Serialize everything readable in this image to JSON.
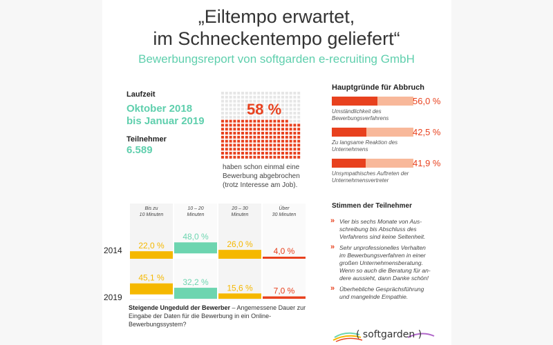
{
  "header": {
    "title_line1": "„Eiltempo erwartet,",
    "title_line2": "im Schneckentempo geliefert“",
    "subtitle": "Bewerbungsreport von softgarden e-recruiting GmbH"
  },
  "info": {
    "laufzeit_label": "Laufzeit",
    "laufzeit_line1": "Oktober 2018",
    "laufzeit_line2": "bis Januar 2019",
    "teilnehmer_label": "Teilnehmer",
    "teilnehmer_value": "6.589"
  },
  "abbruch": {
    "percent_label": "58 %",
    "percent_value": 58,
    "caption_line1": "haben schon einmal eine",
    "caption_line2": "Bewerbung abgebrochen",
    "caption_line3": "(trotz Interesse am Job)."
  },
  "gruende": {
    "title": "Hauptgründe für Abbruch",
    "items": [
      {
        "value": 56.0,
        "label": "56,0 %",
        "text1": "Umständlichkeit des",
        "text2": "Bewerbungsverfahrens"
      },
      {
        "value": 42.5,
        "label": "42,5 %",
        "text1": "Zu langsame Reaktion des",
        "text2": "Unternehmens"
      },
      {
        "value": 41.9,
        "label": "41,9 %",
        "text1": "Unsympathisches Auftreten der",
        "text2": "Unternehmensvertreter"
      }
    ]
  },
  "chart_data": {
    "type": "bar",
    "categories": [
      "Bis zu 10 Minuten",
      "10 – 20 Minuten",
      "20 – 30 Minuten",
      "Über 30 Minuten"
    ],
    "category_lines": [
      [
        "Bis zu",
        "10 Minuten"
      ],
      [
        "10 – 20",
        "Minuten"
      ],
      [
        "20 – 30",
        "Minuten"
      ],
      [
        "Über",
        "30 Minuten"
      ]
    ],
    "series": [
      {
        "name": "2014",
        "values": [
          22.0,
          48.0,
          26.0,
          4.0
        ],
        "labels": [
          "22,0 %",
          "48,0 %",
          "26,0 %",
          "4,0 %"
        ]
      },
      {
        "name": "2019",
        "values": [
          45.1,
          32.2,
          15.6,
          7.0
        ],
        "labels": [
          "45,1 %",
          "32,2 %",
          "15,6 %",
          "7,0 %"
        ]
      }
    ],
    "colors": [
      "#f5b800",
      "#6dd5b0",
      "#f5b800",
      "#e8411e"
    ],
    "title": "Steigende Ungeduld der Bewerber",
    "caption_rest": " – Angemessene Dauer zur Eingabe der Daten für die Bewerbung in ein Online-Bewerbungssystem?",
    "ylim": [
      0,
      100
    ]
  },
  "stimmen": {
    "title": "Stimmen der Teilnehmer",
    "quotes": [
      {
        "lines": [
          "Vier bis sechs Monate von Aus-",
          "schreibung bis Abschluss des",
          "Verfahrens sind keine Seltenheit."
        ]
      },
      {
        "lines": [
          "Sehr unprofessionelles Verhalten",
          "im Bewerbungsverfahren in einer",
          "großen Unternehmensberatung.",
          "Wenn so auch die Beratung für an-",
          "dere aussieht, dann Danke schön!"
        ]
      },
      {
        "lines": [
          "Überhebliche Gesprächsführung",
          "und mangelnde Empathie."
        ]
      }
    ]
  },
  "logo": {
    "text": "( softgarden )"
  },
  "colors": {
    "teal": "#5fcfad",
    "red": "#e8411e",
    "peach": "#f8b89a",
    "yellow": "#f5b800",
    "green": "#6dd5b0"
  }
}
